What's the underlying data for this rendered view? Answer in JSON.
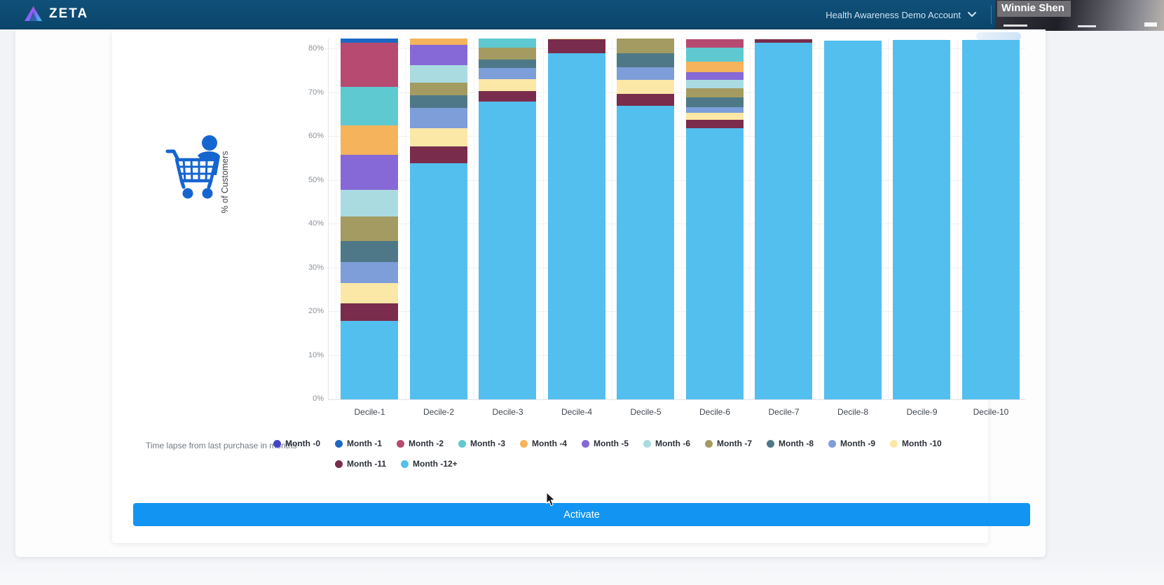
{
  "navbar": {
    "brand": "ZETA",
    "account_selector_label": "Health Awareness Demo Account",
    "user_overlay_name": "Winnie Shen"
  },
  "chart_data": {
    "type": "bar",
    "stacked": true,
    "title": "",
    "xlabel": "",
    "ylabel": "% of Customers",
    "legend_caption": "Time lapse from last purchase in months",
    "legend_position": "bottom",
    "grid": true,
    "y_ticks": [
      "0%",
      "10%",
      "20%",
      "30%",
      "40%",
      "50%",
      "60%",
      "70%",
      "80%"
    ],
    "visible_y_range_pct": [
      0,
      82.4
    ],
    "categories": [
      "Decile-1",
      "Decile-2",
      "Decile-3",
      "Decile-4",
      "Decile-5",
      "Decile-6",
      "Decile-7",
      "Decile-8",
      "Decile-9",
      "Decile-10"
    ],
    "series": [
      {
        "name": "Month -0",
        "color": "#4344c4",
        "values": [
          9.3,
          3.5,
          4.0,
          1.0,
          1.0,
          0,
          0,
          0,
          0,
          0
        ]
      },
      {
        "name": "Month -1",
        "color": "#1d68c2",
        "values": [
          9.3,
          3.5,
          4.7,
          1.0,
          1.0,
          0,
          0,
          0,
          0,
          0
        ]
      },
      {
        "name": "Month -2",
        "color": "#b74a70",
        "values": [
          10.1,
          4.0,
          5.0,
          2.0,
          2.0,
          1.8,
          0,
          0,
          0,
          0
        ]
      },
      {
        "name": "Month -3",
        "color": "#5ec9d0",
        "values": [
          8.8,
          4.0,
          6.0,
          2.5,
          3.0,
          3.2,
          0,
          0,
          0,
          0
        ]
      },
      {
        "name": "Month -4",
        "color": "#f5b35b",
        "values": [
          6.7,
          4.0,
          0,
          0,
          3.0,
          2.4,
          0,
          0,
          0,
          0
        ]
      },
      {
        "name": "Month -5",
        "color": "#8669d7",
        "values": [
          8.0,
          4.6,
          0,
          0,
          3.0,
          1.9,
          0,
          0,
          0,
          0
        ]
      },
      {
        "name": "Month -6",
        "color": "#aadbe1",
        "values": [
          6.1,
          4.0,
          0,
          0,
          3.0,
          1.9,
          0,
          0,
          0,
          0
        ]
      },
      {
        "name": "Month -7",
        "color": "#a39b61",
        "values": [
          5.6,
          3.0,
          2.7,
          2.5,
          5.0,
          2.1,
          0,
          0,
          0,
          0
        ]
      },
      {
        "name": "Month -8",
        "color": "#4e7887",
        "values": [
          4.8,
          2.9,
          1.9,
          2.5,
          3.2,
          2.1,
          0,
          0,
          0,
          0
        ]
      },
      {
        "name": "Month -9",
        "color": "#7d9ed9",
        "values": [
          4.8,
          4.5,
          2.6,
          3.0,
          2.9,
          1.4,
          0,
          0,
          0,
          0
        ]
      },
      {
        "name": "Month -10",
        "color": "#fce8a6",
        "values": [
          4.5,
          4.3,
          2.7,
          3.3,
          3.2,
          1.6,
          0,
          0,
          0,
          0
        ]
      },
      {
        "name": "Month -11",
        "color": "#7a2c4c",
        "values": [
          4.0,
          3.7,
          2.4,
          3.2,
          2.7,
          1.8,
          0.8,
          0,
          0,
          0
        ]
      },
      {
        "name": "Month -12+",
        "color": "#53bfee",
        "values": [
          18,
          54,
          68,
          79,
          67,
          62,
          81.5,
          82,
          82.1,
          82.1
        ]
      }
    ]
  },
  "footer": {
    "activate_label": "Activate"
  },
  "colors": {
    "navbar_bg": "#0d4b73",
    "activate_button": "#1295f2",
    "page_bg": "#f2f3f6",
    "icon_blue": "#1565d0"
  }
}
